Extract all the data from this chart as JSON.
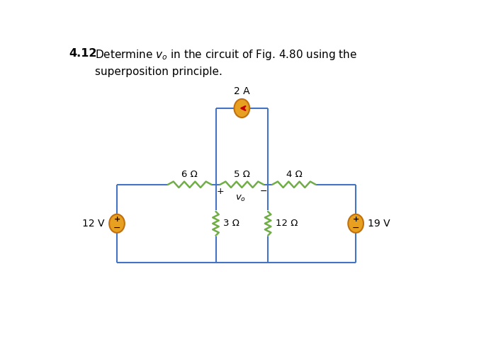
{
  "wire_color": "#4472C4",
  "resistor_color": "#70AD47",
  "source_fill": "#E8A020",
  "source_edge": "#C07010",
  "arrow_color": "#C00000",
  "lw_wire": 1.5,
  "lw_res": 1.8,
  "lw_src": 1.5,
  "text_color": "#333333",
  "title_num": "4.12",
  "title_line1": "Determine $v_o$ in the circuit of Fig. 4.80 using the",
  "title_line2": "superposition principle.",
  "label_6": "6 Ω",
  "label_5": "5 Ω",
  "label_4": "4 Ω",
  "label_3": "3 Ω",
  "label_12": "12 Ω",
  "label_2A": "2 A",
  "label_12V": "12 V",
  "label_19V": "19 V"
}
